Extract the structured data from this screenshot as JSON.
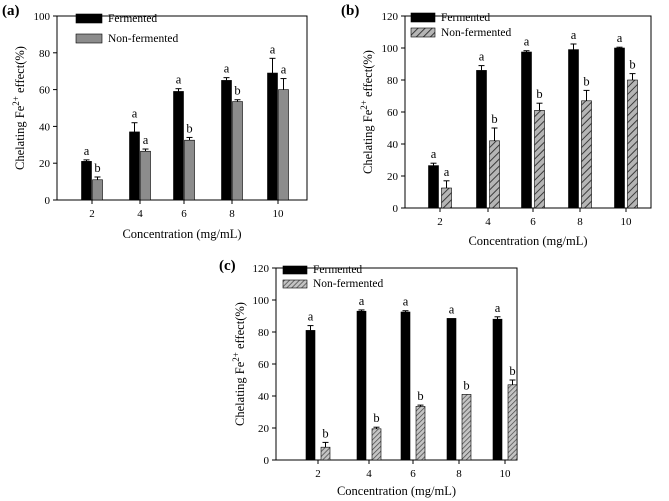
{
  "chart_data": [
    {
      "panel_label": "(a)",
      "type": "bar",
      "title": "",
      "xlabel": "Concentration (mg/mL)",
      "ylabel": "Chelating Fe",
      "ylabel_sup": "2+",
      "ylabel_tail": " effect(%)",
      "ylim": [
        0,
        100
      ],
      "yticks": [
        "0",
        "20",
        "40",
        "60",
        "80",
        "100"
      ],
      "categories": [
        "2",
        "4",
        "6",
        "8",
        "10"
      ],
      "series": [
        {
          "name": "Fermented",
          "style": "solid",
          "color": "#000000",
          "values": [
            21,
            37,
            59,
            65,
            69
          ],
          "errors": [
            0.8,
            5,
            1.5,
            1.5,
            8
          ],
          "labels": [
            "a",
            "a",
            "a",
            "a",
            "a"
          ]
        },
        {
          "name": "Non-fermented",
          "style": "gray",
          "color": "#8c8c8c",
          "values": [
            11,
            26.5,
            32.5,
            53.5,
            60
          ],
          "errors": [
            1.5,
            1.2,
            1.5,
            1,
            6
          ],
          "labels": [
            "b",
            "a",
            "b",
            "b",
            "a"
          ]
        }
      ]
    },
    {
      "panel_label": "(b)",
      "type": "bar",
      "title": "",
      "xlabel": "Concentration (mg/mL)",
      "ylabel": "Chelating Fe",
      "ylabel_sup": "2+",
      "ylabel_tail": " effect(%)",
      "ylim": [
        0,
        120
      ],
      "yticks": [
        "0",
        "20",
        "40",
        "60",
        "80",
        "100",
        "120"
      ],
      "categories": [
        "2",
        "4",
        "6",
        "8",
        "10"
      ],
      "series": [
        {
          "name": "Fermented",
          "style": "solid",
          "color": "#000000",
          "values": [
            26.5,
            86,
            97.5,
            99,
            100
          ],
          "errors": [
            1.5,
            3,
            0.8,
            3.5,
            0.5
          ],
          "labels": [
            "a",
            "a",
            "a",
            "a",
            "a"
          ]
        },
        {
          "name": "Non-fermented",
          "style": "hatch",
          "color": "#8c8c8c",
          "values": [
            12.5,
            42,
            61,
            67,
            80
          ],
          "errors": [
            4.5,
            8,
            4.5,
            6.5,
            4
          ],
          "labels": [
            "a",
            "b",
            "b",
            "b",
            "b"
          ]
        }
      ]
    },
    {
      "panel_label": "(c)",
      "type": "bar",
      "title": "",
      "xlabel": "Concentration (mg/mL)",
      "ylabel": "Chelating Fe",
      "ylabel_sup": "2+",
      "ylabel_tail": " effect(%)",
      "ylim": [
        0,
        120
      ],
      "yticks": [
        "0",
        "20",
        "40",
        "60",
        "80",
        "100",
        "120"
      ],
      "categories": [
        "2",
        "4",
        "6",
        "8",
        "10"
      ],
      "series": [
        {
          "name": "Fermented",
          "style": "solid",
          "color": "#000000",
          "values": [
            81,
            93,
            92.5,
            88.5,
            88
          ],
          "errors": [
            3,
            0.8,
            0.8,
            0,
            1.5
          ],
          "labels": [
            "a",
            "a",
            "a",
            "a",
            "a"
          ]
        },
        {
          "name": "Non-fermented",
          "style": "hatch-dense",
          "color": "#8c8c8c",
          "values": [
            8,
            19.5,
            33.5,
            41,
            47
          ],
          "errors": [
            3,
            1,
            0.8,
            0,
            3
          ],
          "labels": [
            "b",
            "b",
            "b",
            "b",
            "b"
          ]
        }
      ]
    }
  ]
}
